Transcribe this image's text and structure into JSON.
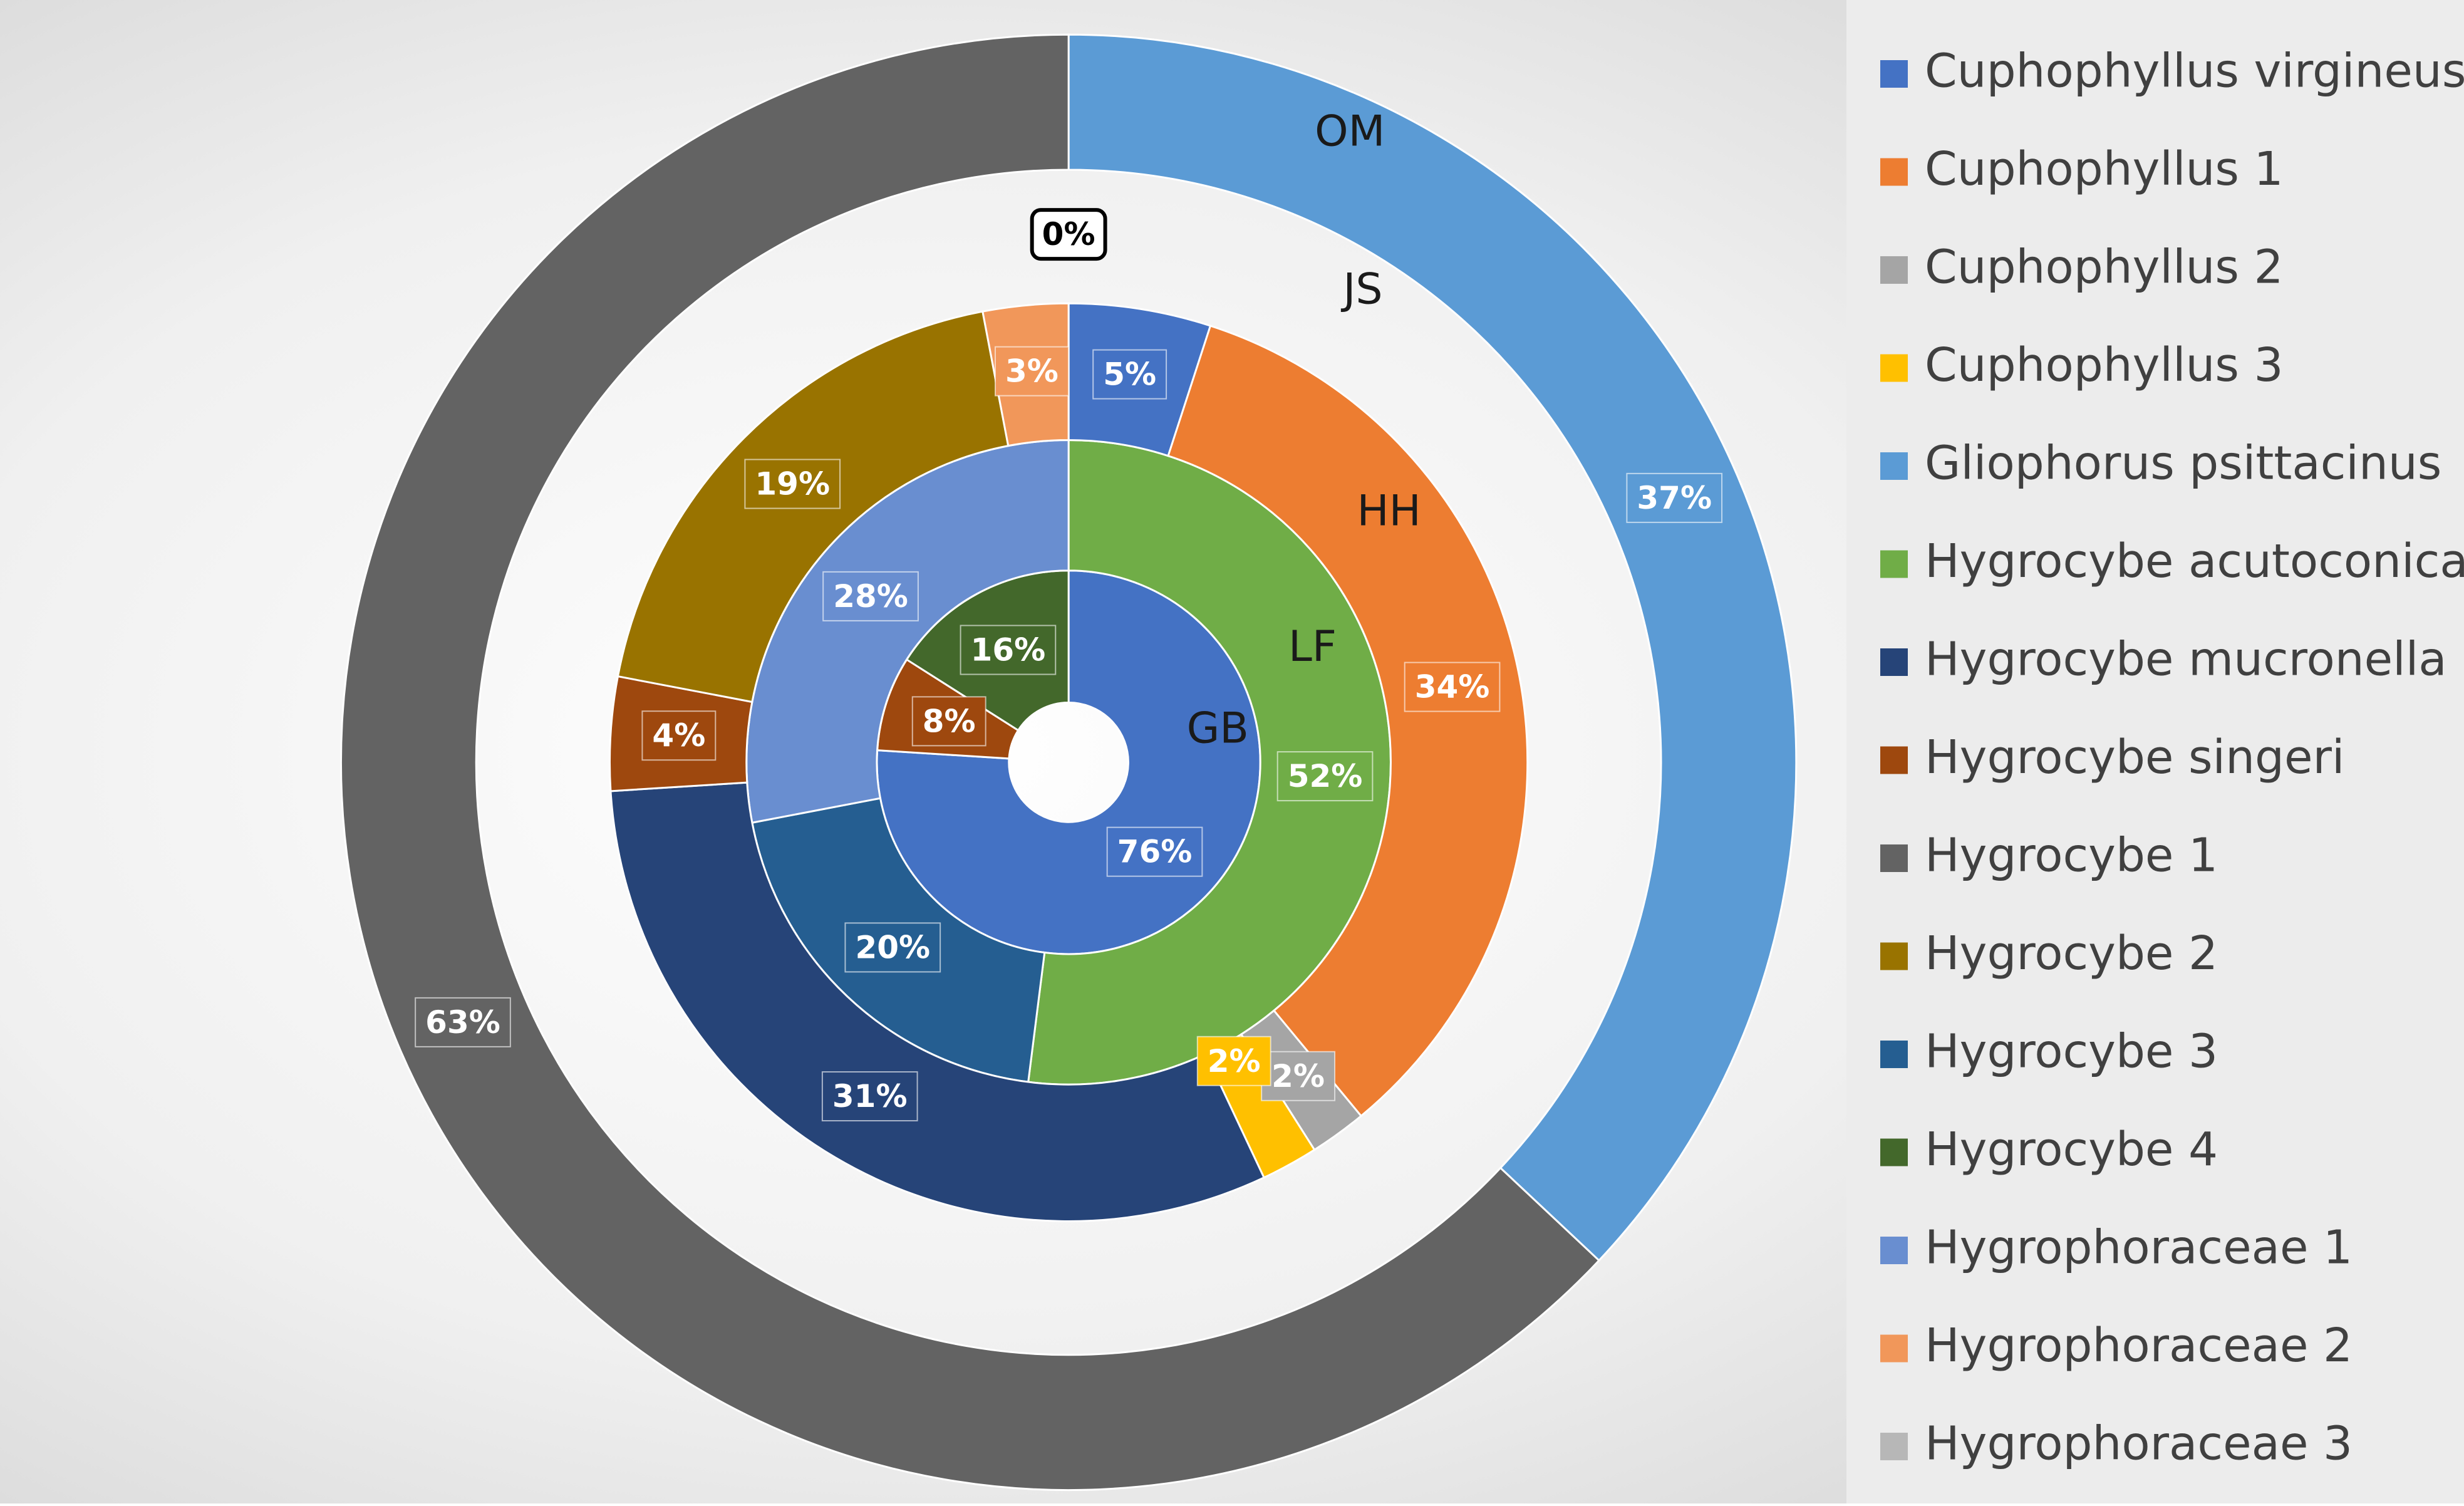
{
  "chart_data": {
    "type": "doughnut",
    "categories": [
      "Cuphophyllus virgineus",
      "Cuphophyllus 1",
      "Cuphophyllus 2",
      "Cuphophyllus 3",
      "Gliophorus psittacinus",
      "Hygrocybe acutoconica",
      "Hygrocybe mucronella",
      "Hygrocybe singeri",
      "Hygrocybe 1",
      "Hygrocybe 2",
      "Hygrocybe 3",
      "Hygrocybe 4",
      "Hygrophoraceae 1",
      "Hygrophoraceae 2",
      "Hygrophoraceae 3"
    ],
    "colors": [
      "#4472c4",
      "#ed7d31",
      "#a5a5a5",
      "#ffc000",
      "#5b9bd5",
      "#70ad47",
      "#264478",
      "#9e480e",
      "#636363",
      "#997300",
      "#255e91",
      "#43682b",
      "#698ed0",
      "#f1975a",
      "#b7b7b7"
    ],
    "series": [
      {
        "name": "GB",
        "values": [
          76,
          null,
          null,
          null,
          null,
          null,
          null,
          8,
          null,
          null,
          null,
          16,
          null,
          null,
          null
        ],
        "value_labels": [
          "76%",
          null,
          null,
          null,
          null,
          null,
          null,
          "8%",
          null,
          null,
          null,
          "16%",
          null,
          null,
          null
        ]
      },
      {
        "name": "LF",
        "values": [
          null,
          null,
          null,
          null,
          null,
          52,
          null,
          null,
          null,
          null,
          20,
          null,
          28,
          null,
          null
        ],
        "value_labels": [
          null,
          null,
          null,
          null,
          null,
          "52%",
          null,
          null,
          null,
          null,
          "20%",
          null,
          "28%",
          null,
          null
        ]
      },
      {
        "name": "HH",
        "values": [
          5,
          34,
          2,
          2,
          null,
          null,
          31,
          4,
          null,
          19,
          null,
          null,
          null,
          3,
          null
        ],
        "value_labels": [
          "5%",
          "34%",
          "2%",
          "2%",
          null,
          null,
          "31%",
          "4%",
          null,
          "19%",
          null,
          null,
          null,
          "3%",
          null
        ]
      },
      {
        "name": "JS",
        "values": [
          0,
          null,
          null,
          null,
          null,
          null,
          null,
          null,
          null,
          null,
          null,
          null,
          null,
          null,
          null
        ],
        "value_labels": [
          "0%",
          null,
          null,
          null,
          null,
          null,
          null,
          null,
          null,
          null,
          null,
          null,
          null,
          null,
          null
        ]
      },
      {
        "name": "OM",
        "values": [
          null,
          null,
          null,
          null,
          37,
          null,
          null,
          null,
          63,
          null,
          null,
          null,
          null,
          null,
          null
        ],
        "value_labels": [
          null,
          null,
          null,
          null,
          "37%",
          null,
          null,
          null,
          "63%",
          null,
          null,
          null,
          null,
          null,
          null
        ]
      }
    ],
    "legend": "right"
  }
}
